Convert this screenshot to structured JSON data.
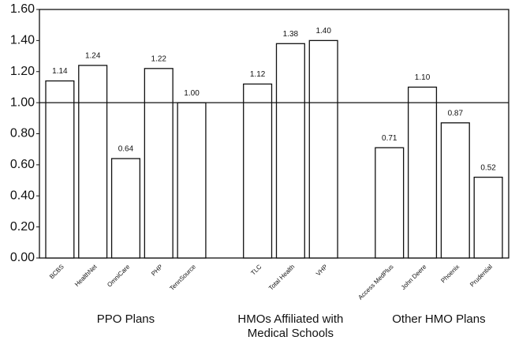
{
  "chart_data": {
    "type": "bar",
    "groups": [
      {
        "label": [
          "PPO Plans"
        ],
        "categories": [
          "BCBS",
          "HealthNet",
          "OmniCare",
          "PHP",
          "TennSource"
        ],
        "values": [
          1.14,
          1.24,
          0.64,
          1.22,
          1.0
        ],
        "value_labels": [
          "1.14",
          "1.24",
          "0.64",
          "1.22",
          "1.00"
        ]
      },
      {
        "label": [
          "HMOs Affiliated with",
          "Medical Schools"
        ],
        "categories": [
          "TLC",
          "Total Health",
          "VHP"
        ],
        "values": [
          1.12,
          1.38,
          1.4
        ],
        "value_labels": [
          "1.12",
          "1.38",
          "1.40"
        ]
      },
      {
        "label": [
          "Other HMO Plans"
        ],
        "categories": [
          "Access MedPlus",
          "John Deere",
          "Phoenix",
          "Prudential"
        ],
        "values": [
          0.71,
          1.1,
          0.87,
          0.52
        ],
        "value_labels": [
          "0.71",
          "1.10",
          "0.87",
          "0.52"
        ]
      }
    ],
    "color": "#ffffff",
    "ylim": [
      0,
      1.6
    ],
    "yticks": [
      {
        "value": 0,
        "label": "0.00"
      },
      {
        "value": 0.2,
        "label": "0.20"
      },
      {
        "value": 0.4,
        "label": "0.40"
      },
      {
        "value": 0.6,
        "label": "0.60"
      },
      {
        "value": 0.8,
        "label": "0.80"
      },
      {
        "value": 1,
        "label": "1.00"
      },
      {
        "value": 1.2,
        "label": "1.20"
      },
      {
        "value": 1.4,
        "label": "1.40"
      },
      {
        "value": 1.6,
        "label": "1.60"
      }
    ],
    "reference_line": 1
  }
}
